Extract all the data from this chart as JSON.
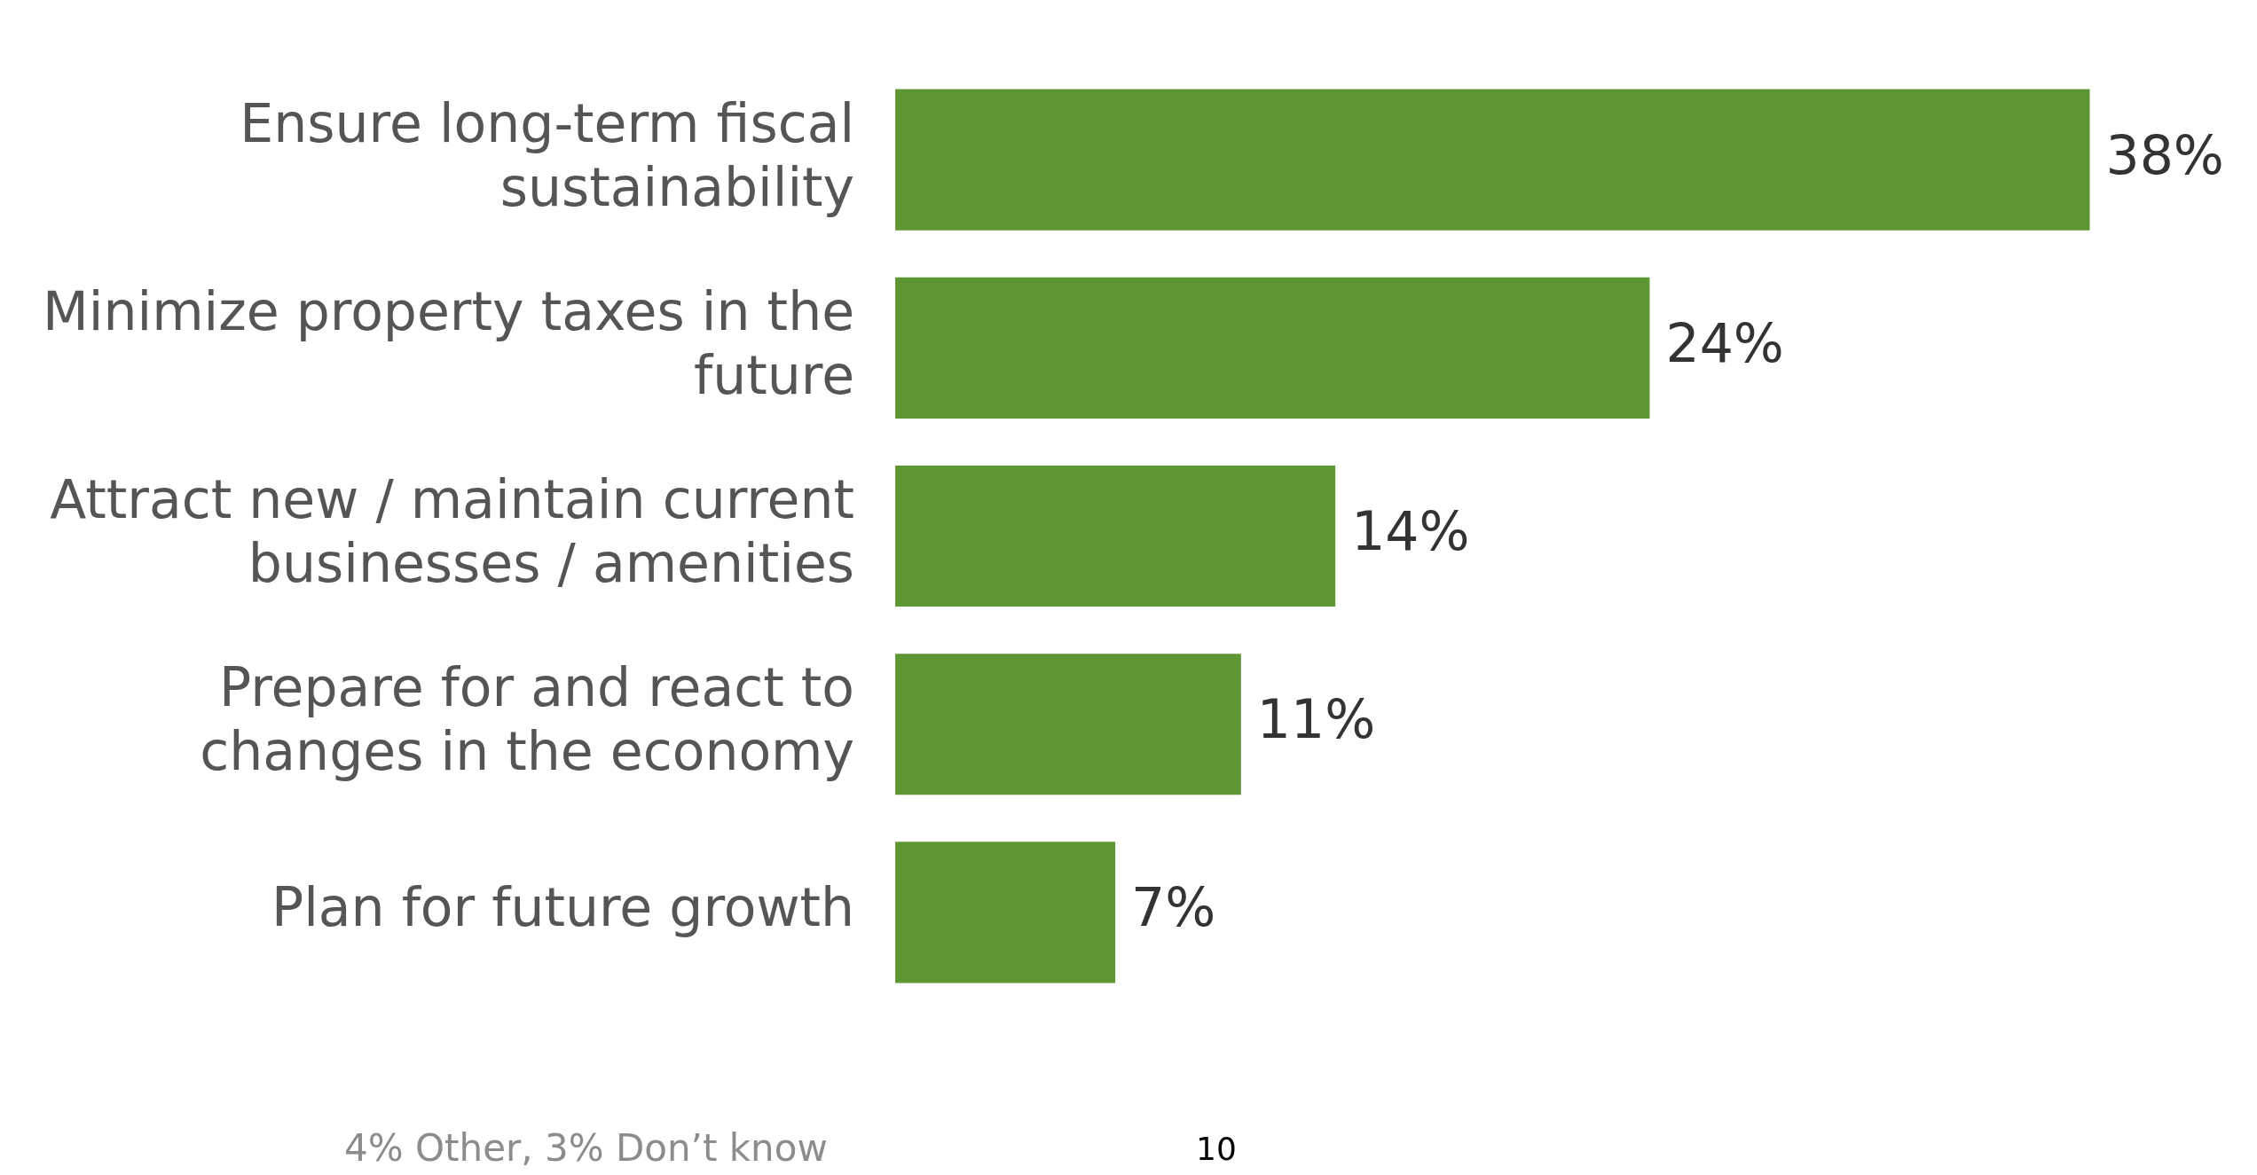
{
  "chart_data": {
    "type": "bar",
    "orientation": "horizontal",
    "categories": [
      "Ensure long-term fiscal sustainability",
      "Minimize property taxes in the future",
      "Attract new / maintain current businesses / amenities",
      "Prepare for and react to changes in the economy",
      "Plan for future growth"
    ],
    "values": [
      38,
      24,
      14,
      11,
      7
    ],
    "value_labels": [
      "38%",
      "24%",
      "14%",
      "11%",
      "7%"
    ],
    "color": "#5e9732",
    "tick_labels": "y",
    "annotations": [
      "4% Other, 3% Don’t know",
      "10"
    ]
  }
}
